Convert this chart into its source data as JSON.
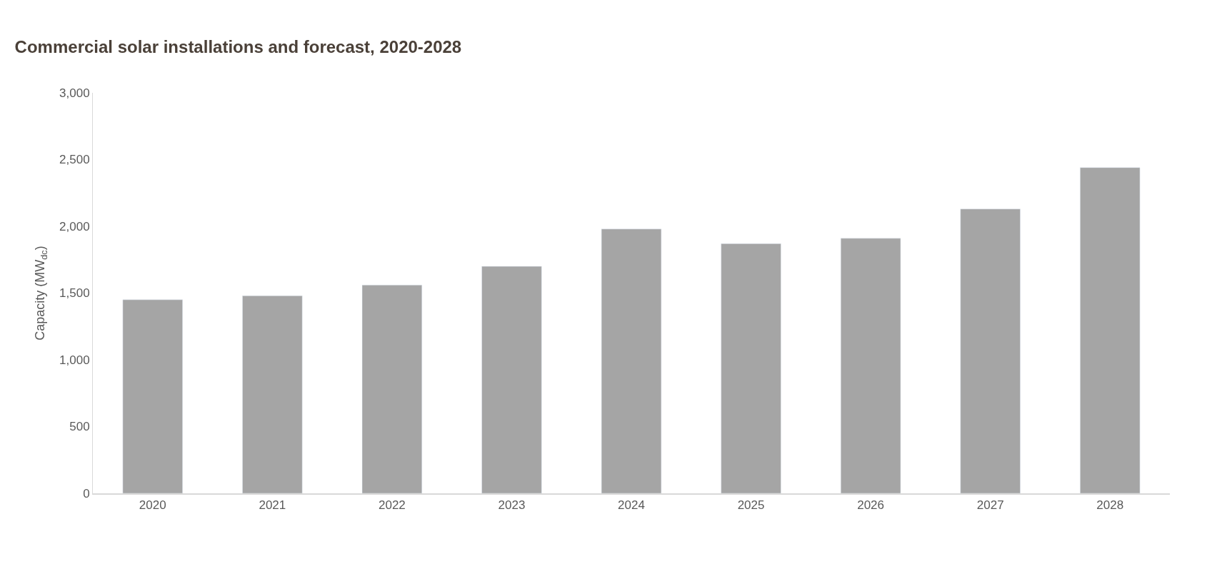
{
  "chart_data": {
    "type": "bar",
    "title": "Commercial solar installations and forecast, 2020-2028",
    "ylabel": "Capacity (MW$_{dc}$)",
    "categories": [
      "2020",
      "2021",
      "2022",
      "2023",
      "2024",
      "2025",
      "2026",
      "2027",
      "2028"
    ],
    "values": [
      1450,
      1480,
      1560,
      1700,
      1980,
      1870,
      1910,
      2130,
      2440
    ],
    "color": "#a5a5a5",
    "ylim": [
      0,
      3000
    ],
    "yticks": [
      {
        "value": 0,
        "label": "0"
      },
      {
        "value": 500,
        "label": "500"
      },
      {
        "value": 1000,
        "label": "1,000"
      },
      {
        "value": 1500,
        "label": "1,500"
      },
      {
        "value": 2000,
        "label": "2,000"
      },
      {
        "value": 2500,
        "label": "2,500"
      },
      {
        "value": 3000,
        "label": "3,000"
      }
    ],
    "grid": false,
    "legend": false
  }
}
